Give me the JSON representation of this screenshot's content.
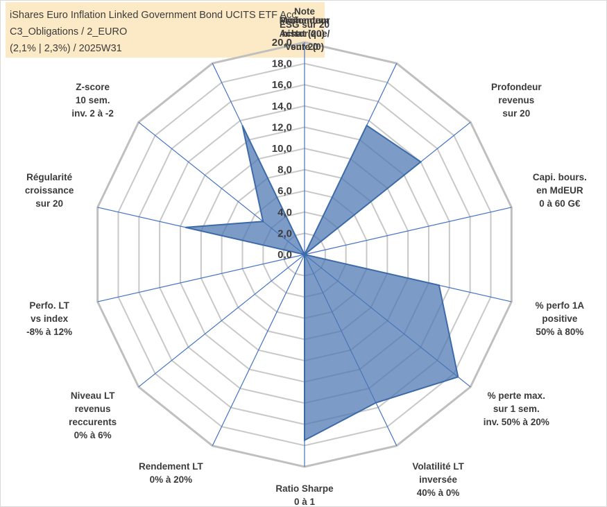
{
  "header": {
    "line1": "iShares Euro Inflation Linked Government Bond UCITS ETF Acc",
    "line2": "C3_Obligations / 2_EURO",
    "line3": "(2,1% | 2,3%) / 2025W31"
  },
  "colors": {
    "fill": "#4a76b2",
    "stroke": "#3d6aa8",
    "spoke": "#4472c4",
    "grid": "#c8c8c8",
    "title_bg": "#fbe6bd"
  },
  "chart_data": {
    "type": "radar",
    "title": "iShares Euro Inflation Linked Government Bond UCITS ETF Acc",
    "rlim": [
      0,
      20
    ],
    "ticks": [
      "0,0",
      "2,0",
      "4,0",
      "6,0",
      "8,0",
      "10,0",
      "12,0",
      "14,0",
      "16,0",
      "18,0",
      "20,0"
    ],
    "grid": true,
    "categories": [
      [
        "Note",
        "ESG sur 20"
      ],
      [
        "Profondeur",
        "historique",
        "sur 20"
      ],
      [
        "Profondeur",
        "revenus",
        "sur 20"
      ],
      [
        "Capi. bours.",
        "en MdEUR",
        "0 à 60 G€"
      ],
      [
        "% perfo 1A",
        "positive",
        "50% à 80%"
      ],
      [
        "% perte max.",
        "sur 1 sem.",
        "inv. 50% à 20%"
      ],
      [
        "Volatilité LT",
        "inversée",
        "40% à 0%"
      ],
      [
        "Ratio Sharpe",
        "0 à 1"
      ],
      [
        "Rendement LT",
        "0% à 20%"
      ],
      [
        "Niveau LT",
        "revenus",
        "reccurents",
        "0% à 6%"
      ],
      [
        "Perfo. LT",
        "vs index",
        "-8% à 12%"
      ],
      [
        "Régularité",
        "croissance",
        "sur 20"
      ],
      [
        "Z-score",
        "10 sem.",
        "inv. 2 à -2"
      ],
      [
        "Momentum",
        "Achat (20) /",
        "Vente (0)"
      ]
    ],
    "series": [
      {
        "values": [
          0.0,
          13.5,
          14.0,
          0.0,
          13.0,
          18.5,
          15.5,
          17.5,
          0.0,
          0.0,
          0.0,
          11.5,
          5.0,
          13.5
        ]
      }
    ]
  }
}
